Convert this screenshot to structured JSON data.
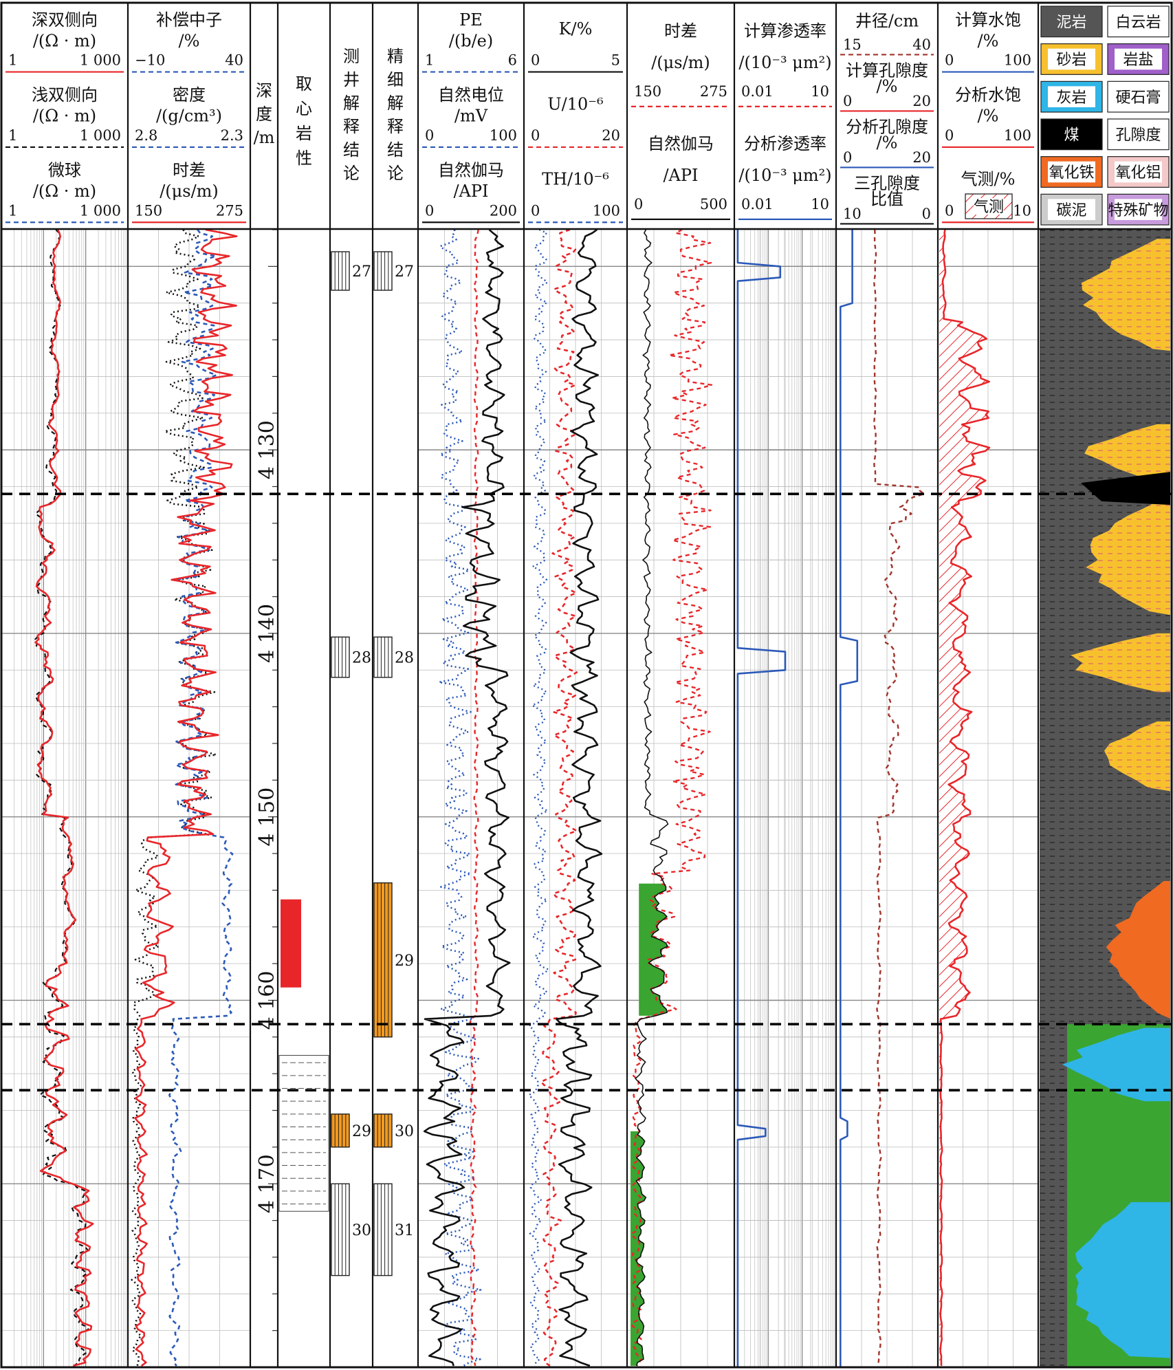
{
  "tracks": {
    "resistivity": {
      "curves": [
        {
          "title_a": "深双侧向",
          "title_b": "/(Ω · m)",
          "min": "1",
          "max": "1 000",
          "color": "#e8262a",
          "dash": "solid"
        },
        {
          "title_a": "浅双侧向",
          "title_b": "/(Ω · m)",
          "min": "1",
          "max": "1 000",
          "color": "#111111",
          "dash": "dashed"
        },
        {
          "title_a": "微球",
          "title_b": "/(Ω · m)",
          "min": "1",
          "max": "1 000",
          "color": "#2b59b8",
          "dash": "dashed"
        }
      ]
    },
    "porosity": {
      "curves": [
        {
          "title_a": "补偿中子",
          "title_b": "/%",
          "min": "−10",
          "max": "40",
          "color": "#2b59b8",
          "dash": "dashed"
        },
        {
          "title_a": "密度",
          "title_b": "/(g/cm³)",
          "min": "2.8",
          "max": "2.3",
          "color": "#2b59b8",
          "dash": "dashed"
        },
        {
          "title_a": "时差",
          "title_b": "/(μs/m)",
          "min": "150",
          "max": "275",
          "color": "#e8262a",
          "dash": "solid"
        }
      ]
    },
    "depth": {
      "title": [
        "深",
        "度",
        "/m"
      ],
      "ticks": [
        {
          "label": "4 130",
          "depth": 4130
        },
        {
          "label": "4 140",
          "depth": 4140
        },
        {
          "label": "4 150",
          "depth": 4150
        },
        {
          "label": "4 160",
          "depth": 4160
        },
        {
          "label": "4 170",
          "depth": 4170
        }
      ]
    },
    "core": {
      "title": [
        "取",
        "心",
        "岩",
        "性"
      ]
    },
    "interp": {
      "title": [
        "测",
        "井",
        "解",
        "释",
        "结",
        "论"
      ],
      "beds": [
        {
          "label": "27",
          "top": 4119.2,
          "bottom": 4121.3
        },
        {
          "label": "28",
          "top": 4140.2,
          "bottom": 4142.4
        },
        {
          "label": "29",
          "top": 4166.2,
          "bottom": 4168.0
        },
        {
          "label": "30",
          "top": 4170.0,
          "bottom": 4175.0
        }
      ]
    },
    "fine": {
      "title": [
        "精",
        "细",
        "解",
        "释",
        "结",
        "论"
      ],
      "beds": [
        {
          "label": "27",
          "top": 4119.2,
          "bottom": 4121.3
        },
        {
          "label": "28",
          "top": 4140.2,
          "bottom": 4142.4
        },
        {
          "label": "29",
          "top": 4153.6,
          "bottom": 4162.0
        },
        {
          "label": "30",
          "top": 4166.2,
          "bottom": 4168.0
        },
        {
          "label": "31",
          "top": 4170.0,
          "bottom": 4175.0
        }
      ]
    },
    "pe_sp_gr": {
      "curves": [
        {
          "title_a": "PE",
          "title_b": "/(b/e)",
          "min": "1",
          "max": "6",
          "color": "#2b59b8",
          "dash": "dashed"
        },
        {
          "title_a": "自然电位",
          "title_b": "/mV",
          "min": "0",
          "max": "100",
          "color": "#2b59b8",
          "dash": "dashed"
        },
        {
          "title_a": "自然伽马",
          "title_b": "/API",
          "min": "0",
          "max": "200",
          "color": "#111111",
          "dash": "solid"
        }
      ]
    },
    "spectral": {
      "curves": [
        {
          "title_a": "K/%",
          "min": "0",
          "max": "5",
          "color": "#111111",
          "dash": "solid"
        },
        {
          "title_a": "U/10⁻⁶",
          "min": "0",
          "max": "20",
          "color": "#e8262a",
          "dash": "dashed"
        },
        {
          "title_a": "TH/10⁻⁶",
          "min": "0",
          "max": "100",
          "color": "#2b59b8",
          "dash": "dashed"
        }
      ]
    },
    "dt_gr": {
      "curves": [
        {
          "title_a": "时差",
          "title_b": "/(μs/m)",
          "min": "150",
          "max": "275",
          "color": "#e8262a",
          "dash": "dashed"
        },
        {
          "title_a": "自然伽马",
          "title_b": "/API",
          "min": "0",
          "max": "500",
          "color": "#111111",
          "dash": "solid"
        }
      ]
    },
    "perm": {
      "curves": [
        {
          "title_a": "计算渗透率",
          "title_b": "/(10⁻³ μm²)",
          "min": "0.01",
          "max": "10",
          "color": "#e8262a",
          "dash": "dashed"
        },
        {
          "title_a": "分析渗透率",
          "title_b": "/(10⁻³ μm²)",
          "min": "0.01",
          "max": "10",
          "color": "#2b59b8",
          "dash": "solid"
        }
      ]
    },
    "por": {
      "curves": [
        {
          "title_a": "井径/cm",
          "min": "15",
          "max": "40",
          "color": "#a0342a",
          "dash": "dashed"
        },
        {
          "title_a": "计算孔隙度",
          "title_b": "/%",
          "min": "0",
          "max": "20",
          "color": "#e8262a",
          "dash": "solid"
        },
        {
          "title_a": "分析孔隙度",
          "title_b": "/%",
          "min": "0",
          "max": "20",
          "color": "#2b59b8",
          "dash": "solid"
        },
        {
          "title_a": "三孔隙度",
          "title_b": "比值",
          "min": "10",
          "max": "0",
          "color": "#111111",
          "dash": "solid"
        }
      ]
    },
    "sat": {
      "curves": [
        {
          "title_a": "计算水饱",
          "title_b": "/%",
          "min": "0",
          "max": "100",
          "color": "#2b59b8",
          "dash": "solid"
        },
        {
          "title_a": "分析水饱",
          "title_b": "/%",
          "min": "0",
          "max": "100",
          "color": "#e8262a",
          "dash": "solid"
        },
        {
          "title_a": "气测/%",
          "min": "0",
          "max": "10",
          "color": "#e8262a",
          "dash": "solid"
        }
      ],
      "gas_label": "气测"
    },
    "lith": {
      "legend": [
        {
          "label": "泥岩",
          "fill": "#555555"
        },
        {
          "label": "白云岩",
          "fill": "#ffffff"
        },
        {
          "label": "砂岩",
          "fill": "#f7c12e"
        },
        {
          "label": "岩盐",
          "fill": "#a05fc9"
        },
        {
          "label": "灰岩",
          "fill": "#2fb5e6"
        },
        {
          "label": "硬石膏",
          "fill": "#ffffff"
        },
        {
          "label": "煤",
          "fill": "#000000"
        },
        {
          "label": "孔隙度",
          "fill": "#ffffff"
        },
        {
          "label": "氧化铁",
          "fill": "#f06a22"
        },
        {
          "label": "氧化铝",
          "fill": "#f3c9c9"
        },
        {
          "label": "碳泥",
          "fill": "#cccccc"
        },
        {
          "label": "特殊矿物",
          "fill": "#c79bdc"
        }
      ]
    }
  },
  "depth_range": [
    4118,
    4180
  ],
  "zone_boundaries": [
    4132.4,
    4161.3,
    4164.9
  ]
}
